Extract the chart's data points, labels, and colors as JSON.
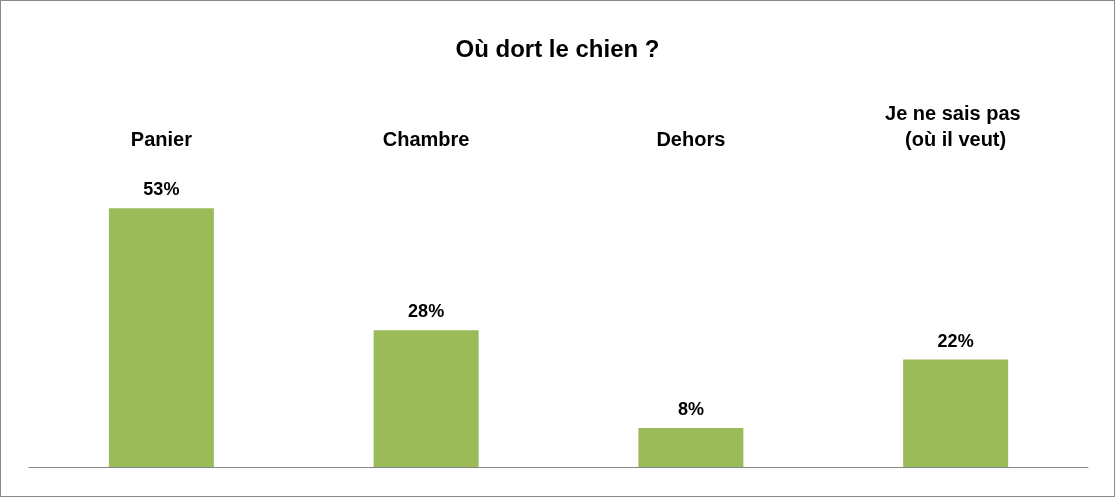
{
  "chart_data": {
    "type": "bar",
    "title": "Où dort le chien ?",
    "categories": [
      "Panier",
      "Chambre",
      "Dehors",
      "Je ne sais pas (où il veut)"
    ],
    "values": [
      53,
      28,
      8,
      22
    ],
    "color": "#9bbb59",
    "value_labels": [
      "53%",
      "28%",
      "8%",
      "22%"
    ]
  }
}
